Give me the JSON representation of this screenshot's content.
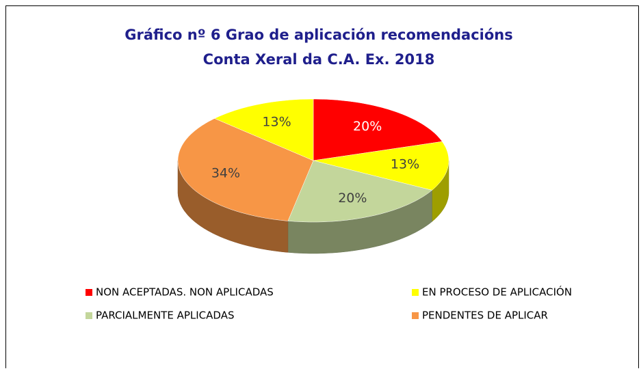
{
  "chart_data": {
    "type": "pie",
    "title": [
      "Gráfico nº 6 Grao de aplicación recomendacións",
      "Conta Xeral da C.A. Ex. 2018"
    ],
    "categories": [
      "NON ACEPTADAS. NON APLICADAS",
      "EN PROCESO DE APLICACIÓN",
      "PARCIALMENTE APLICADAS",
      "PENDENTES DE APLICAR",
      null
    ],
    "values": [
      20,
      13,
      20,
      34,
      13
    ],
    "value_labels": [
      "20%",
      "13%",
      "20%",
      "34%",
      "13%"
    ],
    "colors": [
      "#ff0000",
      "#ffff00",
      "#c3d69b",
      "#f79646",
      "#ffff00"
    ]
  }
}
